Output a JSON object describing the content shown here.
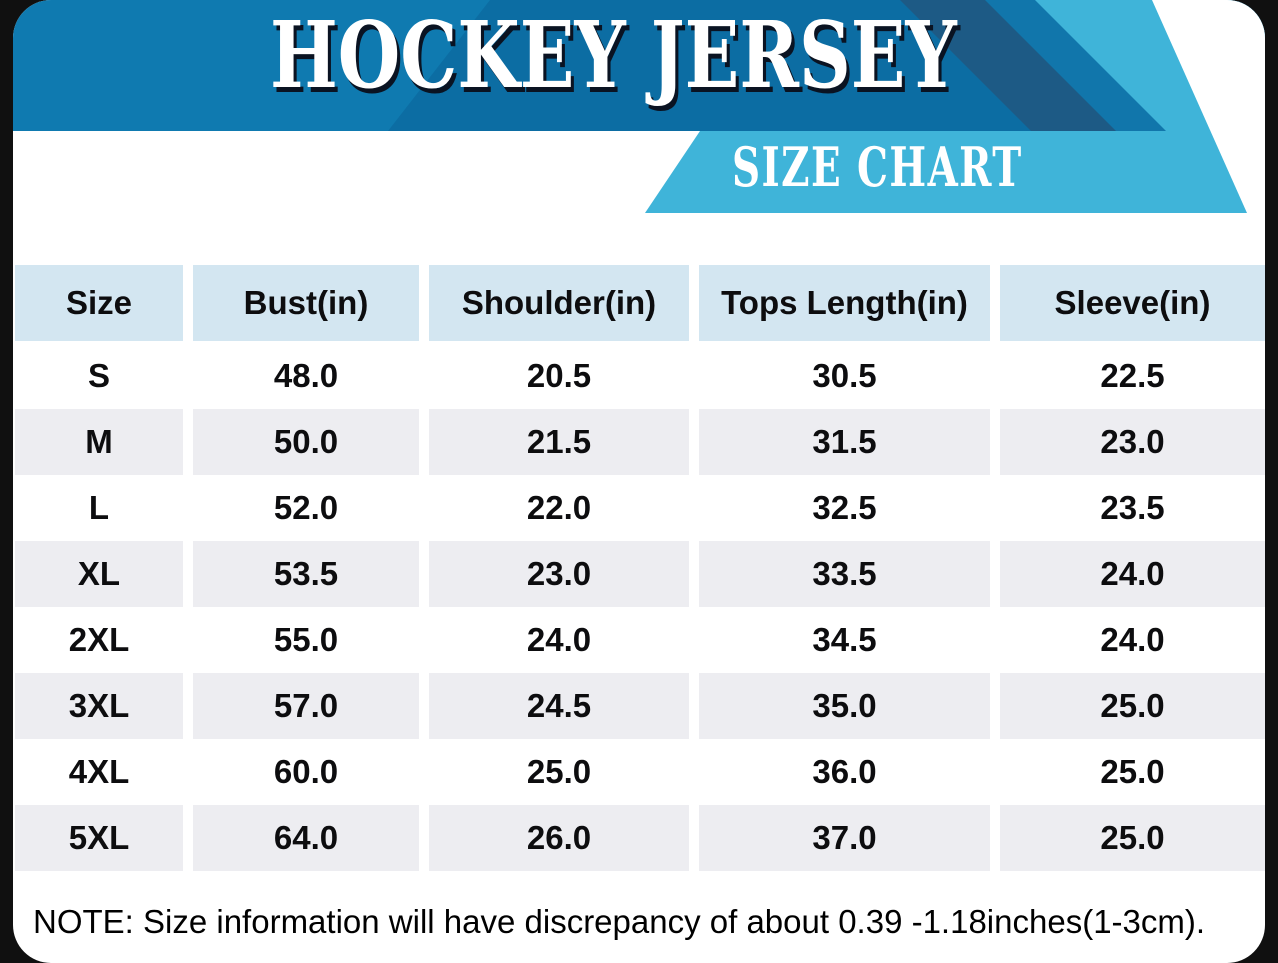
{
  "header": {
    "title": "HOCKEY JERSEY",
    "subtitle": "SIZE CHART"
  },
  "table": {
    "columns": [
      "Size",
      "Bust(in)",
      "Shoulder(in)",
      "Tops Length(in)",
      "Sleeve(in)"
    ],
    "rows": [
      [
        "S",
        "48.0",
        "20.5",
        "30.5",
        "22.5"
      ],
      [
        "M",
        "50.0",
        "21.5",
        "31.5",
        "23.0"
      ],
      [
        "L",
        "52.0",
        "22.0",
        "32.5",
        "23.5"
      ],
      [
        "XL",
        "53.5",
        "23.0",
        "33.5",
        "24.0"
      ],
      [
        "2XL",
        "55.0",
        "24.0",
        "34.5",
        "24.0"
      ],
      [
        "3XL",
        "57.0",
        "24.5",
        "35.0",
        "25.0"
      ],
      [
        "4XL",
        "60.0",
        "25.0",
        "36.0",
        "25.0"
      ],
      [
        "5XL",
        "64.0",
        "26.0",
        "37.0",
        "25.0"
      ]
    ]
  },
  "note": "NOTE: Size information will have discrepancy of about 0.39 -1.18inches(1-3cm).",
  "colors": {
    "banner_base": "#0f7ab0",
    "banner_shade": "#0c6da3",
    "banner_navy": "#1d5a85",
    "banner_stripe": "#1176ab",
    "accent_cyan": "#3fb4d9",
    "th_bg": "#d3e6f1",
    "row_alt": "#ededf1",
    "frame": "#101010",
    "shadow": "#0a1322"
  }
}
